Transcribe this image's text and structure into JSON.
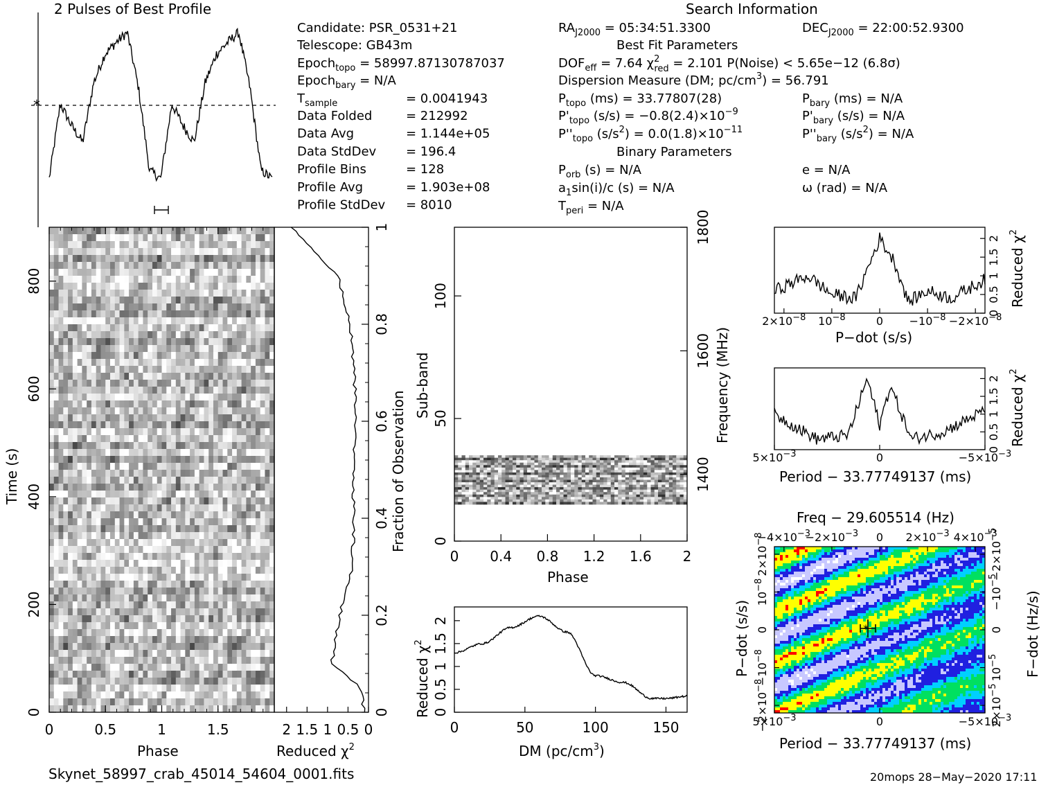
{
  "header": {
    "profile_title": "2 Pulses of Best Profile",
    "search_title": "Search Information",
    "best_fit_title": "Best Fit Parameters",
    "binary_title": "Binary Parameters"
  },
  "info": {
    "candidate": "Candidate:  PSR_0531+21",
    "telescope": "Telescope:  GB43m",
    "epoch_topo": "Epoch",
    "epoch_topo_sub": "topo",
    "epoch_topo_val": " = 58997.87130787037",
    "epoch_bary": "Epoch",
    "epoch_bary_sub": "bary",
    "epoch_bary_val": " = N/A",
    "tsample": "T",
    "tsample_sub": "sample",
    "tsample_val": "=  0.0041943",
    "rows": [
      {
        "label": "Data Folded",
        "value": "=  212992"
      },
      {
        "label": "Data Avg",
        "value": "=  1.144e+05"
      },
      {
        "label": "Data StdDev",
        "value": "=  196.4"
      },
      {
        "label": "Profile Bins",
        "value": "=  128"
      },
      {
        "label": "Profile Avg",
        "value": "=  1.903e+08"
      },
      {
        "label": "Profile StdDev",
        "value": "=  8010"
      }
    ]
  },
  "search": {
    "ra": "RA",
    "ra_sub": "J2000",
    "ra_val": " = 05:34:51.3300",
    "dec": "DEC",
    "dec_sub": "J2000",
    "dec_val": " = 22:00:52.9300",
    "dof": "DOF",
    "dof_sub": "eff",
    "dof_val": " = 7.64   χ",
    "chi_sup": "2",
    "chi_sub": "red",
    "chi_val": " = 2.101   P(Noise) < 5.65e−12   (6.8σ)",
    "dm_line": "Dispersion Measure (DM; pc/cm",
    "dm_sup": "3",
    "dm_val": ") = 56.791",
    "ptopo": "P",
    "ptopo_sub": "topo",
    "ptopo_val": " (ms) =  33.77807(28)",
    "pbary": "P",
    "pbary_sub": "bary",
    "pbary_val": " (ms) = N/A",
    "pdtopo": "P'",
    "pdtopo_sub": "topo",
    "pdtopo_val": " (s/s) = −0.8(2.4)×10",
    "pdtopo_exp": "−9",
    "pdbary": "P'",
    "pdbary_sub": "bary",
    "pdbary_val": " (s/s) = N/A",
    "pddtopo": "P''",
    "pddtopo_sub": "topo",
    "pddtopo_val": " (s/s",
    "pddtopo_sup": "2",
    "pddtopo_val2": ") = 0.0(1.8)×10",
    "pddtopo_exp": "−11",
    "pddbary": "P''",
    "pddbary_sub": "bary",
    "pddbary_val": " (s/s",
    "pddbary_sup": "2",
    "pddbary_val2": ") = N/A",
    "porb": "P",
    "porb_sub": "orb",
    "porb_val": " (s) = N/A",
    "e_val": "e = N/A",
    "a1": "a",
    "a1_sub": "1",
    "a1_val": "sin(i)/c (s) = N/A",
    "omega_val": "ω (rad) = N/A",
    "tperi": "T",
    "tperi_sub": "peri",
    "tperi_val": " = N/A"
  },
  "labels": {
    "time": "Time (s)",
    "phase": "Phase",
    "reduced_chi": "Reduced χ",
    "chi_sup": "2",
    "fraction": "Fraction of Observation",
    "subband": "Sub-band",
    "frequency": "Frequency (MHz)",
    "dm_axis": "DM (pc/cm",
    "dm_axis_sup": "3",
    "dm_axis_end": ")",
    "pdot": "P−dot (s/s)",
    "period": "Period − 33.77749137 (ms)",
    "freq_title": "Freq − 29.605514 (Hz)",
    "fdot": "F−dot (Hz/s)",
    "filename": "Skynet_58997_crab_45014_54604_0001.fits",
    "footer": "20mops 28−May−2020 17:11"
  },
  "ticks": {
    "time_y": [
      "0",
      "200",
      "400",
      "600",
      "800"
    ],
    "phase_x": [
      "0",
      "0.5",
      "1",
      "1.5"
    ],
    "redchi_x": [
      "2",
      "1.5",
      "1",
      "0.5",
      "0"
    ],
    "fraction_y": [
      "0",
      "0.2",
      "0.4",
      "0.6",
      "0.8",
      "1"
    ],
    "subband_y": [
      "0",
      "50",
      "100"
    ],
    "freq_y": [
      "1400",
      "1600",
      "1800"
    ],
    "phase2_x": [
      "0",
      "0.4",
      "0.8",
      "1.2",
      "1.6",
      "2"
    ],
    "dm_x": [
      "0",
      "50",
      "100",
      "150"
    ],
    "dmchi_y": [
      "0",
      "0.5",
      "1",
      "1.5",
      "2"
    ],
    "pd_x": [
      "2×10",
      "10",
      "0",
      "−10",
      "−2×10"
    ],
    "pd_x_exp": [
      "−8",
      "−8",
      "",
      "−8",
      "−8"
    ],
    "pdchi_y": [
      "0",
      "0.5",
      "1",
      "1.5",
      "2"
    ],
    "per_x": [
      "5×10",
      "0",
      "−5×10"
    ],
    "per_x_exp": [
      "−3",
      "",
      "−3"
    ],
    "perchi_y": [
      "0",
      "0.5",
      "1",
      "1.5",
      "2"
    ],
    "freq_top_x": [
      "−4×10",
      "−2×10",
      "0",
      "2×10",
      "4×10"
    ],
    "freq_top_exp": [
      "−3",
      "−3",
      "",
      "−3",
      "−3"
    ],
    "pdot_left": [
      "2×10",
      "10",
      "0",
      "−10",
      "−2×10"
    ],
    "pdot_left_exp": [
      "−8",
      "−8",
      "",
      "−8",
      "−8"
    ],
    "fdot_right": [
      "2×10",
      "10",
      "0",
      "−10",
      "−2×10"
    ],
    "fdot_right_exp": [
      "−5",
      "−5",
      "",
      "−5",
      "−5"
    ],
    "per_bottom": [
      "5×10",
      "0",
      "−5×10"
    ],
    "per_bottom_exp": [
      "−3",
      "",
      "−3"
    ]
  },
  "chart_data": [
    {
      "type": "line",
      "title": "2 Pulses of Best Profile",
      "x": [
        0,
        0.1,
        0.2,
        0.3,
        0.4,
        0.5,
        0.6,
        0.7,
        0.8,
        0.9,
        1.0,
        1.1,
        1.2,
        1.3,
        1.4,
        1.5,
        1.6,
        1.7,
        1.8,
        1.9,
        2.0
      ],
      "values": [
        0.1,
        0.55,
        0.42,
        0.32,
        0.68,
        0.85,
        0.92,
        0.98,
        0.65,
        0.15,
        0.1,
        0.55,
        0.42,
        0.32,
        0.68,
        0.85,
        0.92,
        0.98,
        0.65,
        0.15,
        0.1
      ],
      "xlim": [
        0,
        2
      ]
    },
    {
      "type": "heatmap",
      "xlabel": "Phase",
      "ylabel": "Time (s)",
      "xlim": [
        0,
        2
      ],
      "ylim": [
        0,
        900
      ],
      "colors": [
        "#ffffff",
        "#000000"
      ]
    },
    {
      "type": "line",
      "xlabel": "Reduced χ2",
      "ylabel": "Fraction of Observation",
      "y": [
        0,
        0.05,
        0.1,
        0.15,
        0.2,
        0.3,
        0.4,
        0.5,
        0.6,
        0.7,
        0.8,
        0.9,
        1.0
      ],
      "values": [
        0.1,
        0.2,
        0.9,
        0.8,
        0.7,
        0.4,
        0.35,
        0.38,
        0.3,
        0.35,
        0.45,
        0.75,
        1.9
      ],
      "xlim": [
        2.3,
        0
      ]
    },
    {
      "type": "heatmap",
      "xlabel": "Phase",
      "ylabel": "Sub-band",
      "y2label": "Frequency (MHz)",
      "xlim": [
        0,
        2
      ],
      "ylim": [
        0,
        128
      ],
      "band_range": [
        15,
        35
      ],
      "colors": [
        "#ffffff",
        "#000000"
      ]
    },
    {
      "type": "line",
      "xlabel": "DM (pc/cm3)",
      "ylabel": "Reduced χ2",
      "x": [
        0,
        20,
        40,
        60,
        80,
        100,
        120,
        140,
        150,
        165
      ],
      "values": [
        1.3,
        1.5,
        1.85,
        2.1,
        1.75,
        0.8,
        0.65,
        0.3,
        0.3,
        0.35
      ],
      "xlim": [
        0,
        165
      ],
      "ylim": [
        0,
        2.3
      ]
    },
    {
      "type": "line",
      "xlabel": "P−dot (s/s)",
      "ylabel": "Reduced χ2",
      "x": [
        2.2e-08,
        1.5e-08,
        1e-08,
        5e-09,
        0,
        -3e-09,
        -6e-09,
        -1e-08,
        -1.5e-08,
        -2.2e-08
      ],
      "values": [
        0.6,
        1.0,
        0.5,
        0.4,
        2.0,
        1.4,
        0.3,
        0.6,
        0.4,
        0.9
      ],
      "ylim": [
        0,
        2.3
      ]
    },
    {
      "type": "line",
      "xlabel": "Period − 33.77749137 (ms)",
      "ylabel": "Reduced χ2",
      "x": [
        0.005,
        0.003,
        0.0015,
        0.0006,
        0,
        -0.0005,
        -0.0015,
        -0.003,
        -0.005
      ],
      "values": [
        1.0,
        0.3,
        0.4,
        2.0,
        0.7,
        1.8,
        0.3,
        0.5,
        1.1
      ],
      "ylim": [
        0,
        2.3
      ]
    },
    {
      "type": "heatmap",
      "title": "Freq − 29.605514 (Hz)",
      "xlabel": "Period − 33.77749137 (ms)",
      "ylabel": "P−dot (s/s)",
      "y2label": "F−dot (Hz/s)",
      "colors": [
        "#ffffff",
        "#c8c8ff",
        "#2020e0",
        "#00d0ff",
        "#00e060",
        "#ffff00",
        "#ff0000"
      ]
    }
  ]
}
